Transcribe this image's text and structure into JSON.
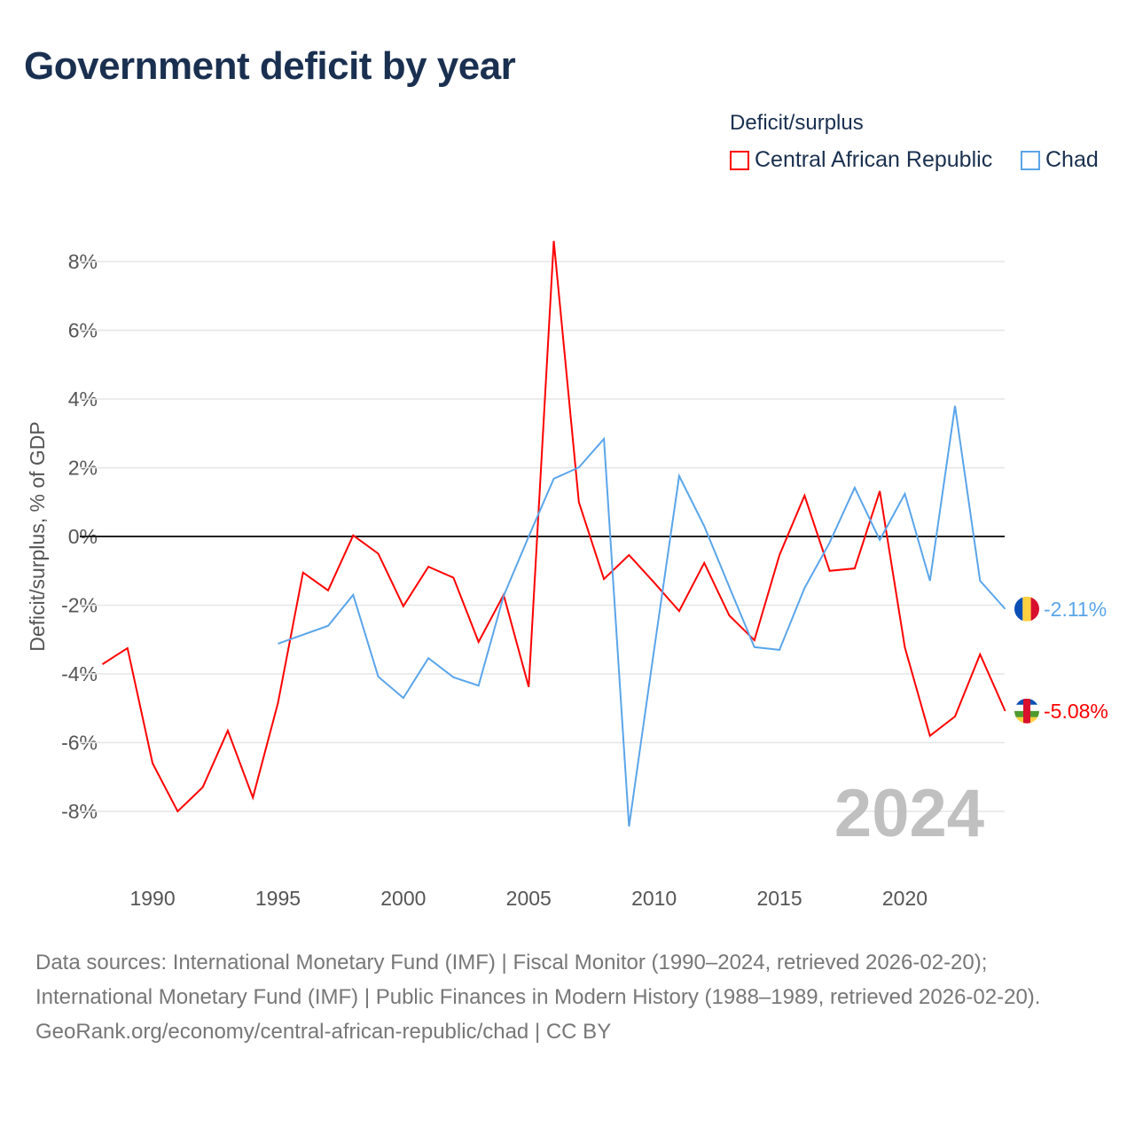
{
  "title": "Government deficit by year",
  "legend": {
    "title": "Deficit/surplus",
    "items": [
      "Central African Republic",
      "Chad"
    ]
  },
  "watermark_year": "2024",
  "footer": {
    "sources": "Data sources: International Monetary Fund (IMF) | Fiscal Monitor (1990–2024, retrieved 2026-02-20); International Monetary Fund (IMF) | Public Finances in Modern History (1988–1989, retrieved 2026-02-20).",
    "link": "GeoRank.org/economy/central-african-republic/chad | CC BY"
  },
  "chart_data": {
    "type": "line",
    "title": "Government deficit by year",
    "xlabel": "",
    "ylabel": "Deficit/surplus, % of GDP",
    "xlim": [
      1988,
      2024
    ],
    "ylim": [
      -9,
      9
    ],
    "xticks": [
      1990,
      1995,
      2000,
      2005,
      2010,
      2015,
      2020
    ],
    "yticks": [
      -8,
      -6,
      -4,
      -2,
      0,
      2,
      4,
      6,
      8
    ],
    "ytick_labels": [
      "-8%",
      "-6%",
      "-4%",
      "-2%",
      "0%",
      "2%",
      "4%",
      "6%",
      "8%"
    ],
    "grid": true,
    "legend_position": "top-right",
    "series": [
      {
        "name": "Central African Republic",
        "color": "#ff0000",
        "end_label": "-5.08%",
        "x_start": 1988,
        "values": [
          -3.72,
          -3.25,
          -6.6,
          -8.0,
          -7.3,
          -5.65,
          -7.6,
          -4.85,
          -1.05,
          -1.57,
          0.03,
          -0.5,
          -2.03,
          -0.88,
          -1.2,
          -3.07,
          -1.7,
          -4.38,
          8.6,
          1.0,
          -1.24,
          -0.54,
          -1.34,
          -2.17,
          -0.77,
          -2.3,
          -3.02,
          -0.54,
          1.19,
          -1.0,
          -0.93,
          1.32,
          -3.23,
          -5.8,
          -5.24,
          -3.43,
          -5.08
        ]
      },
      {
        "name": "Chad",
        "color": "#5aa5ea",
        "end_label": "-2.11%",
        "x_start": 1995,
        "values": [
          -3.12,
          -2.86,
          -2.6,
          -1.7,
          -4.08,
          -4.7,
          -3.54,
          -4.1,
          -4.34,
          -1.73,
          0.0,
          1.68,
          2.01,
          2.84,
          -8.44,
          -3.3,
          1.76,
          0.3,
          -1.47,
          -3.22,
          -3.3,
          -1.5,
          -0.18,
          1.42,
          -0.1,
          1.24,
          -1.29,
          3.8,
          -1.29,
          -2.11
        ]
      }
    ]
  }
}
